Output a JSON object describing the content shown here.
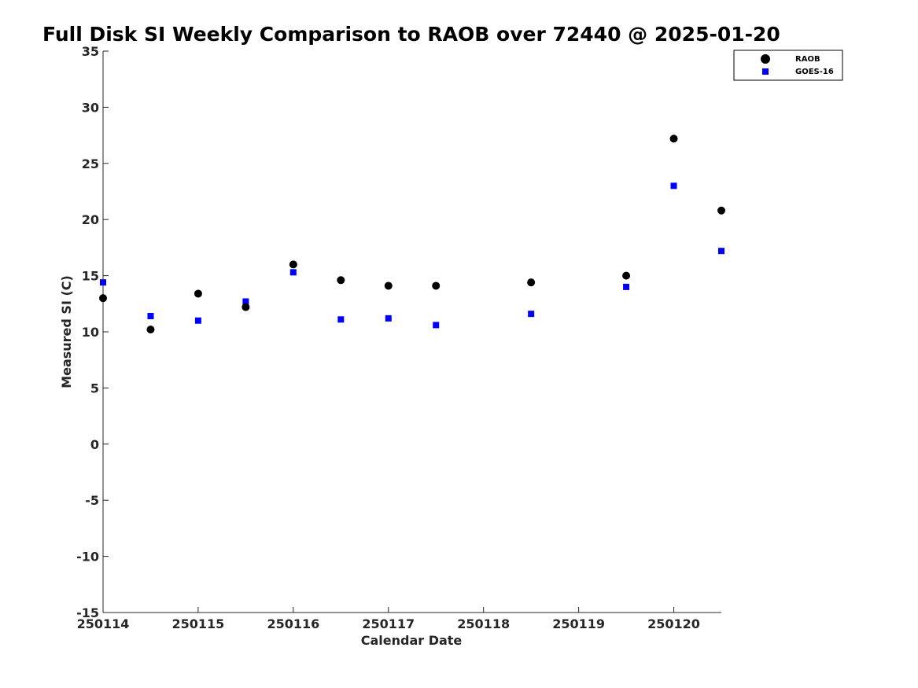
{
  "chart_data": {
    "type": "scatter",
    "title": "Full Disk SI Weekly Comparison to RAOB over 72440 @ 2025-01-20",
    "xlabel": "Calendar Date",
    "ylabel": "Measured SI (C)",
    "xlim": [
      250114,
      250120.5
    ],
    "ylim": [
      -15,
      35
    ],
    "xticks": [
      250114,
      250115,
      250116,
      250117,
      250118,
      250119,
      250120
    ],
    "xtick_labels": [
      "250114",
      "250115",
      "250116",
      "250117",
      "250118",
      "250119",
      "250120"
    ],
    "yticks": [
      -15,
      -10,
      -5,
      0,
      5,
      10,
      15,
      20,
      25,
      30,
      35
    ],
    "ytick_labels": [
      "-15",
      "-10",
      "-5",
      "0",
      "5",
      "10",
      "15",
      "20",
      "25",
      "30",
      "35"
    ],
    "grid": false,
    "legend_position": "top-right",
    "series": [
      {
        "name": "RAOB",
        "marker": "circle",
        "color": "#000000",
        "x": [
          250114,
          250114.5,
          250115,
          250115.5,
          250116,
          250116.5,
          250117,
          250117.5,
          250118.5,
          250119.5,
          250120,
          250120.5
        ],
        "y": [
          13.0,
          10.2,
          13.4,
          12.2,
          16.0,
          14.6,
          14.1,
          14.1,
          14.4,
          15.0,
          27.2,
          20.8
        ]
      },
      {
        "name": "GOES-16",
        "marker": "square",
        "color": "#0000ff",
        "x": [
          250114,
          250114.5,
          250115,
          250115.5,
          250116,
          250116.5,
          250117,
          250117.5,
          250118.5,
          250119.5,
          250120,
          250120.5
        ],
        "y": [
          14.4,
          11.4,
          11.0,
          12.7,
          15.3,
          11.1,
          11.2,
          10.6,
          11.6,
          14.0,
          23.0,
          17.2
        ]
      }
    ]
  }
}
